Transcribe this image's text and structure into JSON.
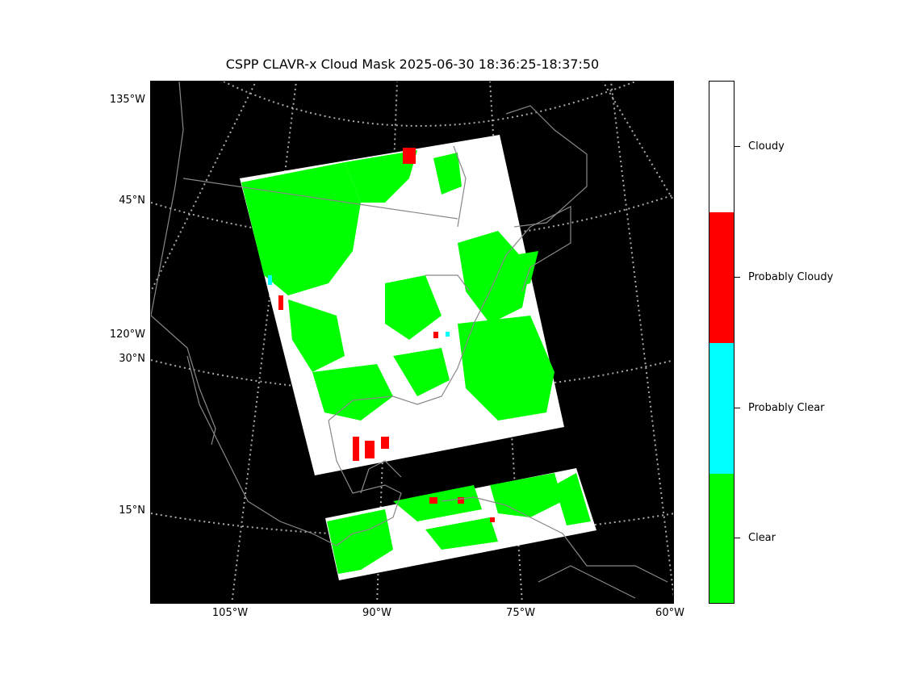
{
  "title": "CSPP CLAVR-x Cloud Mask 2025-06-30 18:36:25-18:37:50",
  "axes": {
    "left_labels": [
      "135°W",
      "45°N",
      "120°W",
      "30°N",
      "15°N"
    ],
    "bottom_labels": [
      "105°W",
      "90°W",
      "75°W",
      "60°W"
    ]
  },
  "colorbar": {
    "categories": [
      {
        "label": "Cloudy",
        "color": "#ffffff"
      },
      {
        "label": "Probably Cloudy",
        "color": "#ff0000"
      },
      {
        "label": "Probably Clear",
        "color": "#00ffff"
      },
      {
        "label": "Clear",
        "color": "#00ff00"
      }
    ]
  },
  "colors": {
    "background": "#000000",
    "coastline": "#888888",
    "graticule": "#aaaaaa"
  }
}
